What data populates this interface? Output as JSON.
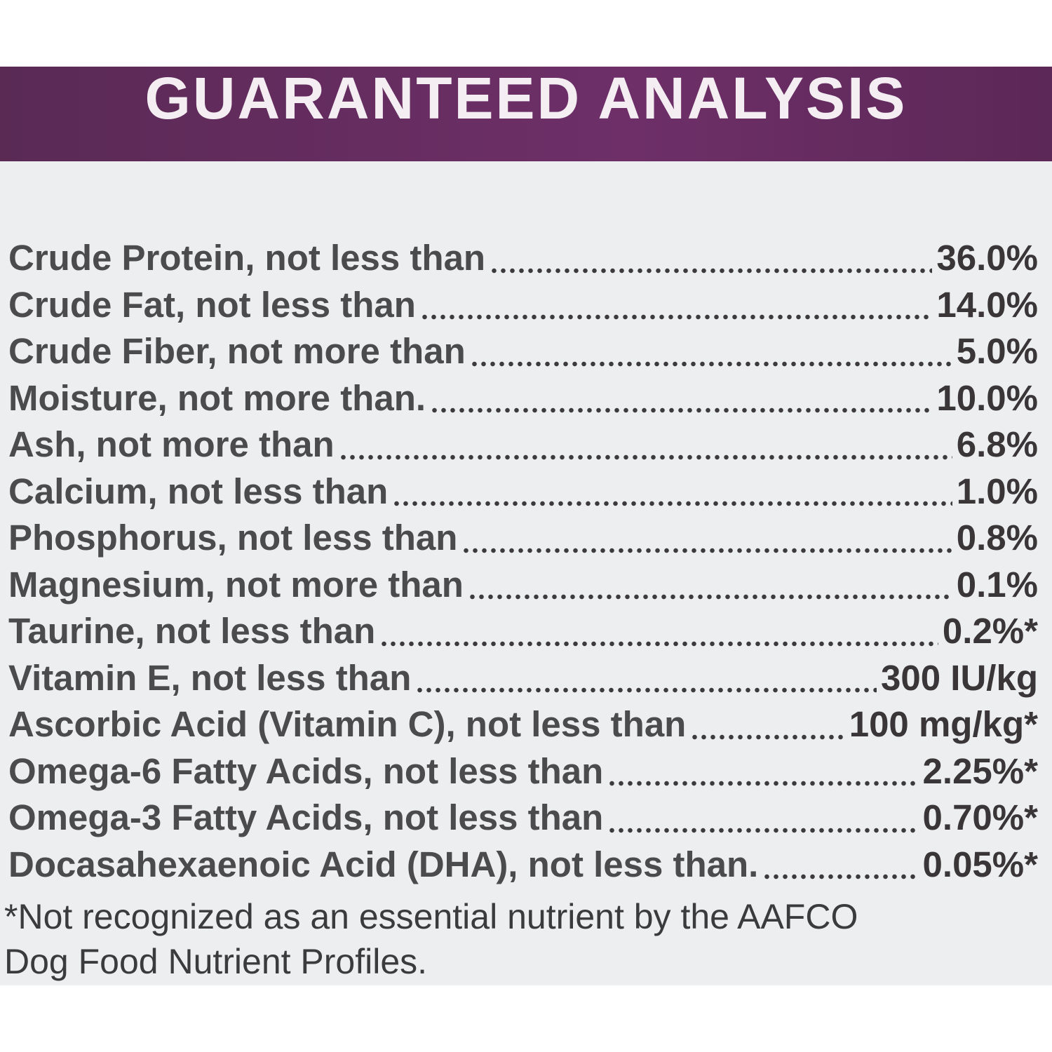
{
  "header": {
    "title": "GUARANTEED ANALYSIS"
  },
  "table": {
    "rows": [
      [
        "Crude Protein, not less than",
        "36.0%"
      ],
      [
        "Crude Fat, not less than",
        "14.0%"
      ],
      [
        "Crude Fiber, not more than",
        "5.0%"
      ],
      [
        "Moisture, not more than.",
        "10.0%"
      ],
      [
        "Ash, not more than",
        "6.8%"
      ],
      [
        "Calcium, not less than",
        "1.0%"
      ],
      [
        "Phosphorus, not less than",
        "0.8%"
      ],
      [
        "Magnesium, not more than",
        "0.1%"
      ],
      [
        "Taurine, not less than",
        "0.2%*"
      ],
      [
        "Vitamin E, not less than",
        "300 IU/kg"
      ],
      [
        "Ascorbic Acid (Vitamin C), not less than",
        "100 mg/kg*"
      ],
      [
        "Omega-6 Fatty Acids, not less than",
        "2.25%*"
      ],
      [
        "Omega-3 Fatty Acids, not less than",
        "0.70%*"
      ],
      [
        "Docasahexaenoic Acid (DHA), not less than.",
        "0.05%*"
      ]
    ]
  },
  "footnote": {
    "lines": [
      "*Not recognized as an essential nutrient by the AAFCO",
      "Dog Food Nutrient Profiles."
    ]
  }
}
